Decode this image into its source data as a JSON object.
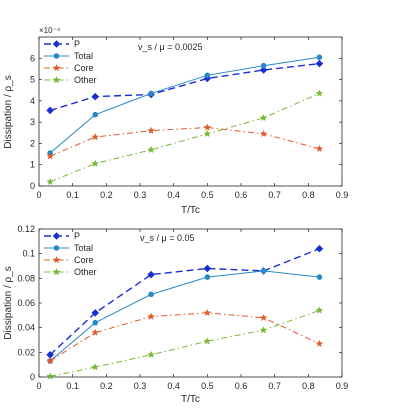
{
  "chart_data": [
    {
      "type": "line",
      "title": "",
      "annotation": "v_s / μ = 0.0025",
      "xlabel": "T/Tc",
      "ylabel": "Dissipation / ρ_s",
      "exponent_label": "×10⁻⁴",
      "xlim": [
        0,
        0.9
      ],
      "ylim": [
        0,
        7
      ],
      "xticks": [
        "0",
        "0.1",
        "0.2",
        "0.3",
        "0.4",
        "0.5",
        "0.6",
        "0.7",
        "0.8",
        "0.9"
      ],
      "yticks": [
        "0",
        "1",
        "2",
        "3",
        "4",
        "5",
        "6"
      ],
      "legend_position": "top-left",
      "x": [
        0.033,
        0.167,
        0.333,
        0.5,
        0.667,
        0.833
      ],
      "series": [
        {
          "name": "P",
          "values": [
            3.55,
            4.2,
            4.3,
            5.05,
            5.45,
            5.75
          ],
          "color": "#1a2fd0",
          "style": "dashed",
          "marker": "diamond"
        },
        {
          "name": "Total",
          "values": [
            1.55,
            3.35,
            4.35,
            5.2,
            5.65,
            6.05
          ],
          "color": "#2b87c7",
          "style": "solid",
          "marker": "dot"
        },
        {
          "name": "Core",
          "values": [
            1.4,
            2.3,
            2.6,
            2.75,
            2.45,
            1.75
          ],
          "color": "#e05a2b",
          "style": "dashdot",
          "marker": "star"
        },
        {
          "name": "Other",
          "values": [
            0.2,
            1.05,
            1.7,
            2.45,
            3.2,
            4.35
          ],
          "color": "#77b733",
          "style": "dashdot",
          "marker": "star"
        }
      ]
    },
    {
      "type": "line",
      "title": "",
      "annotation": "v_s / μ = 0.05",
      "xlabel": "T/Tc",
      "ylabel": "Dissipation / ρ_s",
      "exponent_label": "",
      "xlim": [
        0,
        0.9
      ],
      "ylim": [
        0,
        0.12
      ],
      "xticks": [
        "0",
        "0.1",
        "0.2",
        "0.3",
        "0.4",
        "0.5",
        "0.6",
        "0.7",
        "0.8",
        "0.9"
      ],
      "yticks": [
        "0",
        "0.02",
        "0.04",
        "0.06",
        "0.08",
        "0.1",
        "0.12"
      ],
      "legend_position": "top-left",
      "x": [
        0.033,
        0.167,
        0.333,
        0.5,
        0.667,
        0.833
      ],
      "series": [
        {
          "name": "P",
          "values": [
            0.018,
            0.052,
            0.083,
            0.088,
            0.086,
            0.104
          ],
          "color": "#1a2fd0",
          "style": "dashed",
          "marker": "diamond"
        },
        {
          "name": "Total",
          "values": [
            0.013,
            0.044,
            0.067,
            0.081,
            0.086,
            0.081
          ],
          "color": "#2b87c7",
          "style": "solid",
          "marker": "dot"
        },
        {
          "name": "Core",
          "values": [
            0.013,
            0.036,
            0.049,
            0.052,
            0.048,
            0.027
          ],
          "color": "#e05a2b",
          "style": "dashdot",
          "marker": "star"
        },
        {
          "name": "Other",
          "values": [
            0.0005,
            0.008,
            0.018,
            0.029,
            0.038,
            0.054
          ],
          "color": "#77b733",
          "style": "dashdot",
          "marker": "star"
        }
      ]
    }
  ]
}
